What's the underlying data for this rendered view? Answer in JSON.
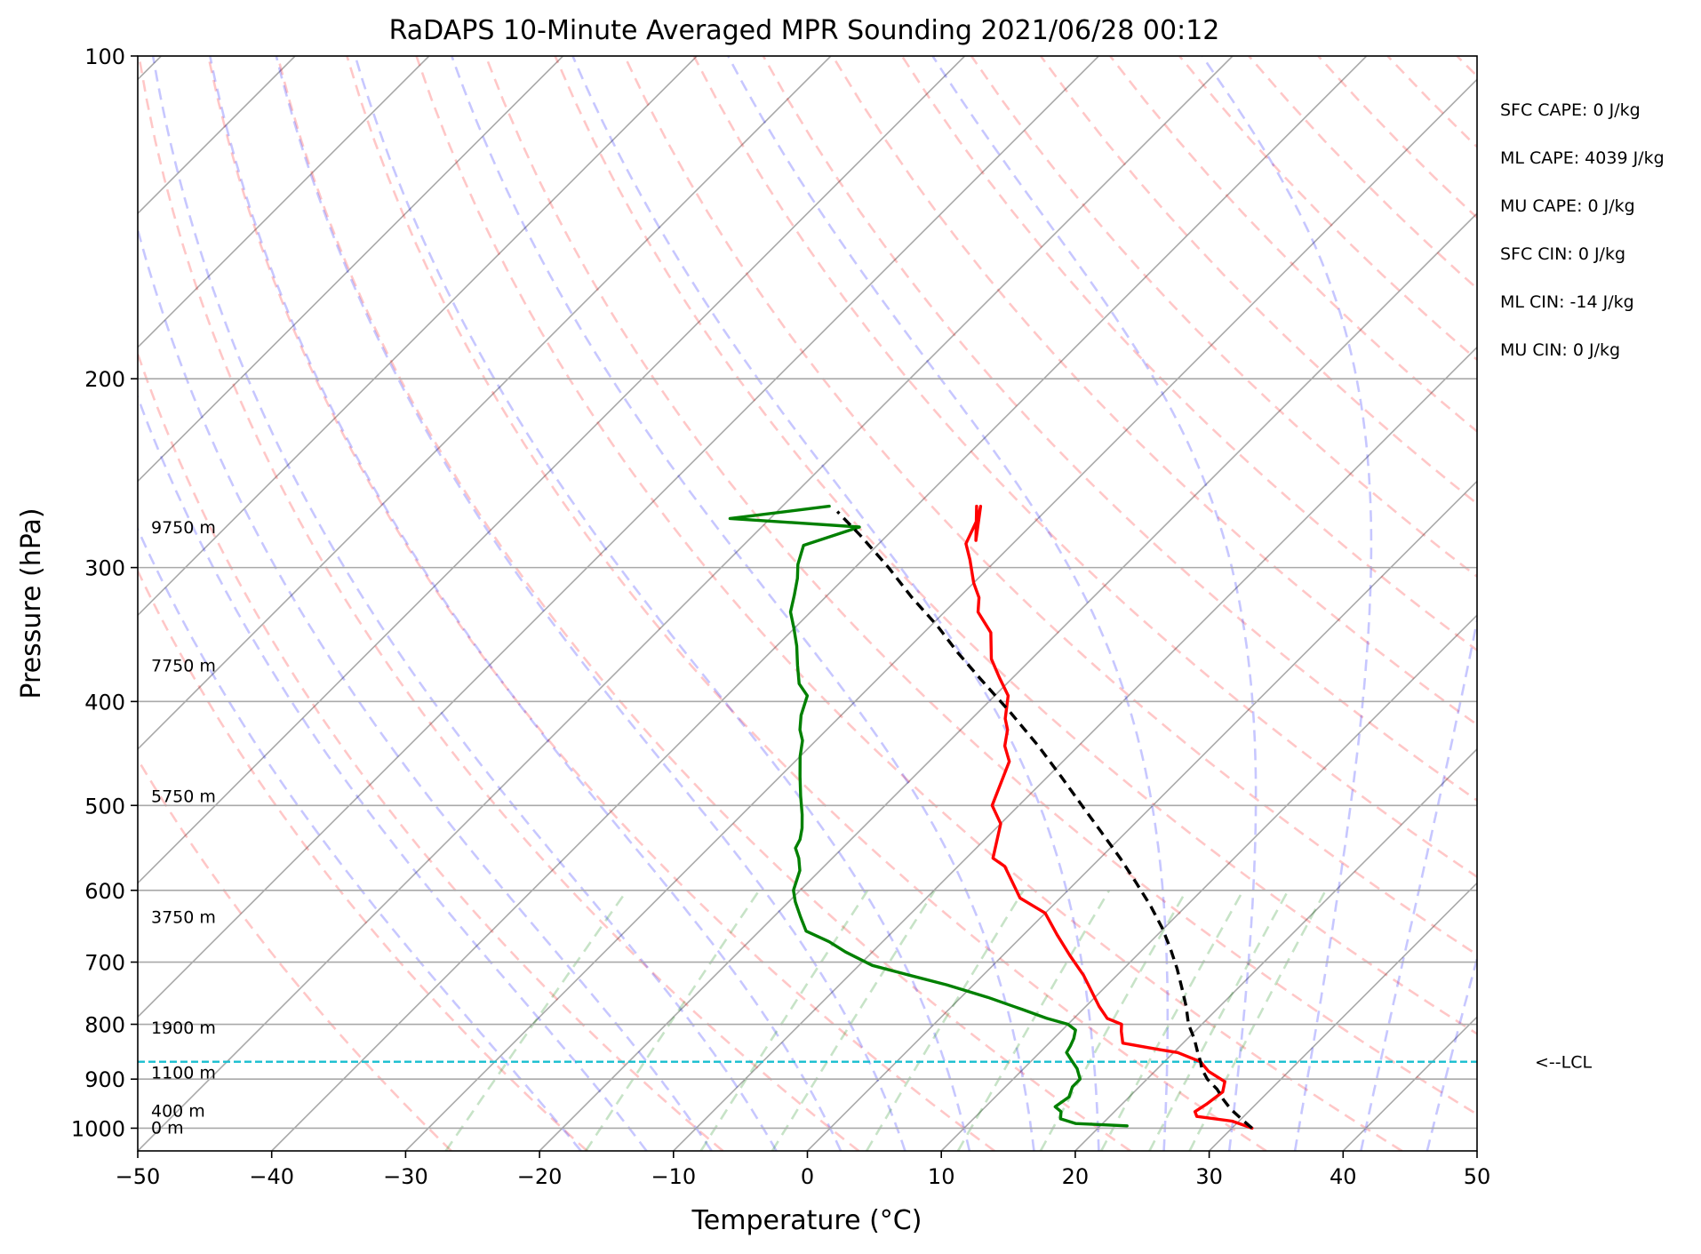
{
  "chart_data": {
    "type": "line",
    "subtype": "skew-t log-p sounding",
    "title": "RaDAPS 10-Minute Averaged MPR Sounding 2021/06/28 00:12",
    "xlabel": "Temperature (°C)",
    "ylabel": "Pressure (hPa)",
    "xlim": [
      -50,
      50
    ],
    "ylim": [
      1050,
      100
    ],
    "y_scale": "log",
    "x_ticks": [
      "−50",
      "−40",
      "−30",
      "−20",
      "−10",
      "0",
      "10",
      "20",
      "30",
      "40",
      "50"
    ],
    "y_ticks": [
      "100",
      "200",
      "300",
      "400",
      "500",
      "600",
      "700",
      "800",
      "900",
      "1000"
    ],
    "grid": true,
    "height_labels": [
      {
        "text": "9750 m",
        "pressure": 275
      },
      {
        "text": "7750 m",
        "pressure": 370
      },
      {
        "text": "5750 m",
        "pressure": 490
      },
      {
        "text": "3750 m",
        "pressure": 635
      },
      {
        "text": "1900 m",
        "pressure": 805
      },
      {
        "text": "1100 m",
        "pressure": 887
      },
      {
        "text": "400 m",
        "pressure": 963
      },
      {
        "text": "0 m",
        "pressure": 998
      }
    ],
    "lcl": {
      "pressure": 867,
      "label": "<--LCL",
      "color": "#17becf"
    },
    "stats": [
      "SFC CAPE: 0 J/kg",
      "ML CAPE: 4039 J/kg",
      "MU CAPE: 0 J/kg",
      "SFC CIN: 0 J/kg",
      "ML CIN: -14 J/kg",
      "MU CIN: 0 J/kg"
    ],
    "series": [
      {
        "key": "temperature",
        "color": "#ff0000",
        "points": [
          [
            31.5,
            1000
          ],
          [
            29.5,
            985
          ],
          [
            26.5,
            975
          ],
          [
            26.0,
            965
          ],
          [
            26.3,
            950
          ],
          [
            26.6,
            925
          ],
          [
            26.0,
            905
          ],
          [
            24.0,
            885
          ],
          [
            22.7,
            867
          ],
          [
            20.3,
            850
          ],
          [
            18.8,
            845
          ],
          [
            15.5,
            833
          ],
          [
            14.5,
            812
          ],
          [
            14.0,
            800
          ],
          [
            12.5,
            790
          ],
          [
            11.0,
            770
          ],
          [
            7.5,
            720
          ],
          [
            5.0,
            690
          ],
          [
            2.5,
            660
          ],
          [
            0.0,
            630
          ],
          [
            -3.0,
            610
          ],
          [
            -6.5,
            570
          ],
          [
            -8.0,
            560
          ],
          [
            -10.0,
            520
          ],
          [
            -12.0,
            500
          ],
          [
            -14.0,
            455
          ],
          [
            -15.5,
            440
          ],
          [
            -16.5,
            425
          ],
          [
            -17.5,
            415
          ],
          [
            -19.0,
            395
          ],
          [
            -21.0,
            380
          ],
          [
            -23.0,
            365
          ],
          [
            -25.0,
            345
          ],
          [
            -27.5,
            330
          ],
          [
            -28.5,
            320
          ],
          [
            -30.0,
            310
          ],
          [
            -32.0,
            295
          ],
          [
            -33.5,
            285
          ],
          [
            -34.5,
            270
          ],
          [
            -35.2,
            263
          ],
          [
            -33.0,
            283
          ],
          [
            -35.5,
            263
          ]
        ]
      },
      {
        "key": "dewpoint",
        "color": "#008000",
        "points": [
          [
            22.0,
            995
          ],
          [
            18.0,
            990
          ],
          [
            16.5,
            980
          ],
          [
            16.0,
            965
          ],
          [
            15.2,
            955
          ],
          [
            15.5,
            935
          ],
          [
            15.0,
            915
          ],
          [
            15.0,
            900
          ],
          [
            14.0,
            880
          ],
          [
            13.0,
            865
          ],
          [
            12.0,
            850
          ],
          [
            11.8,
            838
          ],
          [
            11.5,
            825
          ],
          [
            11.0,
            810
          ],
          [
            10.0,
            800
          ],
          [
            8.0,
            790
          ],
          [
            5.5,
            775
          ],
          [
            2.0,
            755
          ],
          [
            -2.0,
            735
          ],
          [
            -5.5,
            720
          ],
          [
            -9.0,
            705
          ],
          [
            -12.0,
            685
          ],
          [
            -14.0,
            670
          ],
          [
            -16.5,
            655
          ],
          [
            -18.0,
            635
          ],
          [
            -19.5,
            615
          ],
          [
            -20.5,
            600
          ],
          [
            -21.5,
            575
          ],
          [
            -22.5,
            560
          ],
          [
            -23.5,
            548
          ],
          [
            -23.8,
            538
          ],
          [
            -24.5,
            525
          ],
          [
            -25.5,
            510
          ],
          [
            -27.0,
            490
          ],
          [
            -28.5,
            470
          ],
          [
            -30.0,
            450
          ],
          [
            -31.0,
            435
          ],
          [
            -32.0,
            425
          ],
          [
            -33.0,
            412
          ],
          [
            -34.0,
            395
          ],
          [
            -35.5,
            385
          ],
          [
            -37.0,
            370
          ],
          [
            -38.5,
            355
          ],
          [
            -40.0,
            342
          ],
          [
            -41.5,
            330
          ],
          [
            -42.5,
            318
          ],
          [
            -43.5,
            307
          ],
          [
            -44.5,
            298
          ],
          [
            -45.5,
            286
          ],
          [
            -42.7,
            275
          ],
          [
            -53.0,
            270
          ],
          [
            -46.5,
            263
          ]
        ]
      },
      {
        "key": "parcel",
        "color": "#000000",
        "dashed": true,
        "points": [
          [
            31.5,
            1000
          ],
          [
            30.0,
            980
          ],
          [
            28.5,
            960
          ],
          [
            27.2,
            940
          ],
          [
            26.0,
            920
          ],
          [
            24.5,
            900
          ],
          [
            23.3,
            880
          ],
          [
            22.7,
            867
          ],
          [
            21.8,
            850
          ],
          [
            20.5,
            825
          ],
          [
            19.0,
            800
          ],
          [
            17.5,
            770
          ],
          [
            15.8,
            740
          ],
          [
            14.0,
            710
          ],
          [
            12.0,
            680
          ],
          [
            9.8,
            650
          ],
          [
            7.3,
            620
          ],
          [
            4.5,
            590
          ],
          [
            1.5,
            560
          ],
          [
            -1.8,
            530
          ],
          [
            -5.3,
            500
          ],
          [
            -9.0,
            470
          ],
          [
            -13.0,
            440
          ],
          [
            -17.5,
            410
          ],
          [
            -22.5,
            380
          ],
          [
            -26.0,
            360
          ],
          [
            -29.5,
            340
          ],
          [
            -33.5,
            320
          ],
          [
            -37.5,
            300
          ],
          [
            -42.0,
            280
          ],
          [
            -45.5,
            266
          ]
        ]
      }
    ]
  }
}
